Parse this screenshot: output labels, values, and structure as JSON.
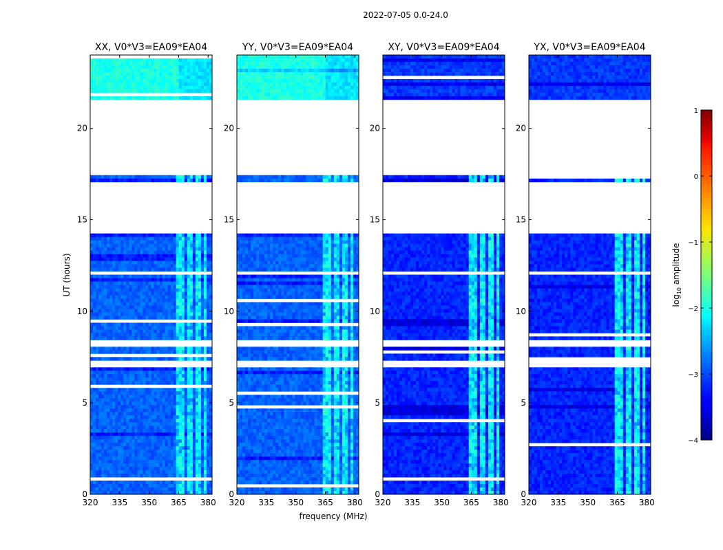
{
  "suptitle": "2022-07-05 0.0-24.0",
  "chart_data": {
    "type": "heatmap",
    "title": "2022-07-05 0.0-24.0",
    "xlabel": "frequency (MHz)",
    "ylabel": "UT (hours)",
    "xlim": [
      320,
      382
    ],
    "ylim": [
      0,
      24
    ],
    "xticks": [
      320,
      335,
      350,
      365,
      380
    ],
    "yticks": [
      0,
      5,
      10,
      15,
      20
    ],
    "panels": [
      {
        "title": "XX, V0*V3=EA09*EA04",
        "pol": "XX",
        "base_level": -2.9,
        "upper_band_level": -2.0
      },
      {
        "title": "YY, V0*V3=EA09*EA04",
        "pol": "YY",
        "base_level": -2.9,
        "upper_band_level": -2.0
      },
      {
        "title": "XY, V0*V3=EA09*EA04",
        "pol": "XY",
        "base_level": -3.2,
        "upper_band_level": -3.1
      },
      {
        "title": "YX, V0*V3=EA09*EA04",
        "pol": "YX",
        "base_level": -3.2,
        "upper_band_level": -3.1
      }
    ],
    "rfi_channels_mhz": [
      [
        364,
        368
      ],
      [
        369.5,
        371.5
      ],
      [
        373.5,
        376.5
      ],
      [
        377.5,
        379
      ]
    ],
    "rfi_level": -2.1,
    "flagged_ut_ranges": [
      [
        21.4,
        21.55
      ],
      [
        17.4,
        21.4
      ],
      [
        14.3,
        17.0
      ],
      [
        12.0,
        12.15
      ],
      [
        8.1,
        8.4
      ],
      [
        7.0,
        7.3
      ]
    ],
    "colorbar": {
      "label_main": "log",
      "label_sub": "10",
      "label_tail": " amplitude",
      "vmin": -4,
      "vmax": 1,
      "ticks": [
        1,
        0,
        -1,
        -2,
        -3,
        -4
      ],
      "tick_labels": [
        "1",
        "0",
        "−1",
        "−2",
        "−3",
        "−4"
      ],
      "colormap": "jet"
    }
  }
}
